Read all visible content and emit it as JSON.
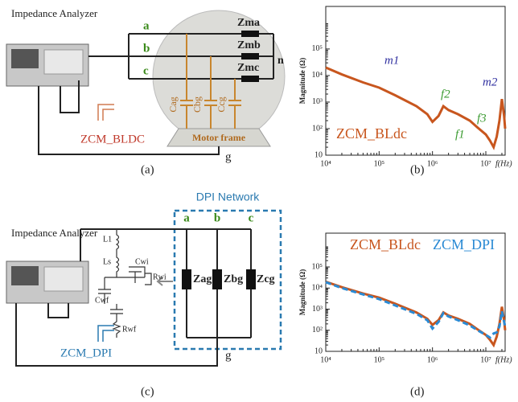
{
  "diagrams": {
    "a": {
      "analyzer": "Impedance Analyzer",
      "phases": [
        "a",
        "b",
        "c"
      ],
      "impedances": [
        "Zma",
        "Zmb",
        "Zmc"
      ],
      "neutral": "n",
      "capacitors": [
        "Cag",
        "Cbg",
        "Ccg"
      ],
      "frame": "Motor frame",
      "measure": "ZCM_BLDC",
      "ground": "g",
      "caption": "(a)"
    },
    "c": {
      "analyzer": "Impedance Analyzer",
      "network": "DPI Network",
      "phases": [
        "a",
        "b",
        "c"
      ],
      "impedances": [
        "Zag",
        "Zbg",
        "Zcg"
      ],
      "components": [
        "L1",
        "Ls",
        "Cwi",
        "Rwi",
        "Cwf",
        "Rwf"
      ],
      "measure": "ZCM_DPI",
      "ground": "g",
      "caption": "(c)"
    }
  },
  "chart_data": [
    {
      "type": "line",
      "caption": "(b)",
      "y_label": "Magnitude (Ω)",
      "x_label": "f(Hz)",
      "log_x": true,
      "log_y": true,
      "x": [
        10000,
        20000,
        50000,
        100000,
        200000,
        500000,
        800000,
        1000000,
        1300000,
        1600000,
        2000000,
        3000000,
        5000000,
        7000000,
        10000000,
        12000000,
        14000000,
        16000000,
        18000000,
        20000000,
        22000000,
        23000000
      ],
      "series": [
        {
          "name": "ZCM_BLdc",
          "color": "#c8561e",
          "dashed": false,
          "values": [
            20000,
            11000,
            5500,
            3500,
            1800,
            700,
            350,
            180,
            300,
            700,
            500,
            350,
            200,
            110,
            60,
            35,
            20,
            50,
            200,
            1300,
            300,
            100
          ]
        }
      ],
      "annotations": [
        "m1",
        "m2",
        "f1",
        "f2",
        "f3"
      ],
      "xlim": [
        10000,
        23000000
      ],
      "ylim": [
        10,
        4000000
      ],
      "xticks": [
        {
          "value": 10000,
          "label": "10⁴"
        },
        {
          "value": 100000,
          "label": "10⁵"
        },
        {
          "value": 1000000,
          "label": "10⁶"
        },
        {
          "value": 10000000,
          "label": "10⁷"
        }
      ],
      "yticks": [
        10,
        {
          "value": 100,
          "label": "10²"
        },
        {
          "value": 1000,
          "label": "10³"
        },
        {
          "value": 10000,
          "label": "10⁴"
        },
        {
          "value": 100000,
          "label": "10⁵"
        }
      ]
    },
    {
      "type": "line",
      "caption": "(d)",
      "y_label": "Magnitude (Ω)",
      "x_label": "f(Hz)",
      "log_x": true,
      "log_y": true,
      "x": [
        10000,
        20000,
        50000,
        100000,
        200000,
        500000,
        800000,
        1000000,
        1300000,
        1600000,
        2000000,
        3000000,
        5000000,
        7000000,
        10000000,
        12000000,
        14000000,
        16000000,
        18000000,
        20000000,
        22000000,
        23000000
      ],
      "series": [
        {
          "name": "ZCM_BLdc",
          "color": "#c8561e",
          "dashed": false,
          "values": [
            20000,
            11000,
            5500,
            3500,
            1800,
            700,
            350,
            180,
            300,
            700,
            500,
            350,
            200,
            110,
            60,
            35,
            20,
            50,
            200,
            1300,
            300,
            100
          ]
        },
        {
          "name": "ZCM_DPI",
          "color": "#2a8ad4",
          "dashed": true,
          "values": [
            19000,
            10000,
            5000,
            3000,
            1500,
            600,
            300,
            120,
            250,
            650,
            450,
            300,
            170,
            100,
            60,
            45,
            70,
            80,
            150,
            800,
            250,
            150
          ]
        }
      ],
      "xlim": [
        10000,
        23000000
      ],
      "ylim": [
        10,
        4000000
      ],
      "xticks": [
        {
          "value": 10000,
          "label": "10⁴"
        },
        {
          "value": 100000,
          "label": "10⁵"
        },
        {
          "value": 1000000,
          "label": "10⁶"
        },
        {
          "value": 10000000,
          "label": "10⁷"
        }
      ],
      "yticks": [
        10,
        {
          "value": 100,
          "label": "10²"
        },
        {
          "value": 1000,
          "label": "10³"
        },
        {
          "value": 10000,
          "label": "10⁴"
        },
        {
          "value": 100000,
          "label": "10⁵"
        }
      ]
    }
  ]
}
